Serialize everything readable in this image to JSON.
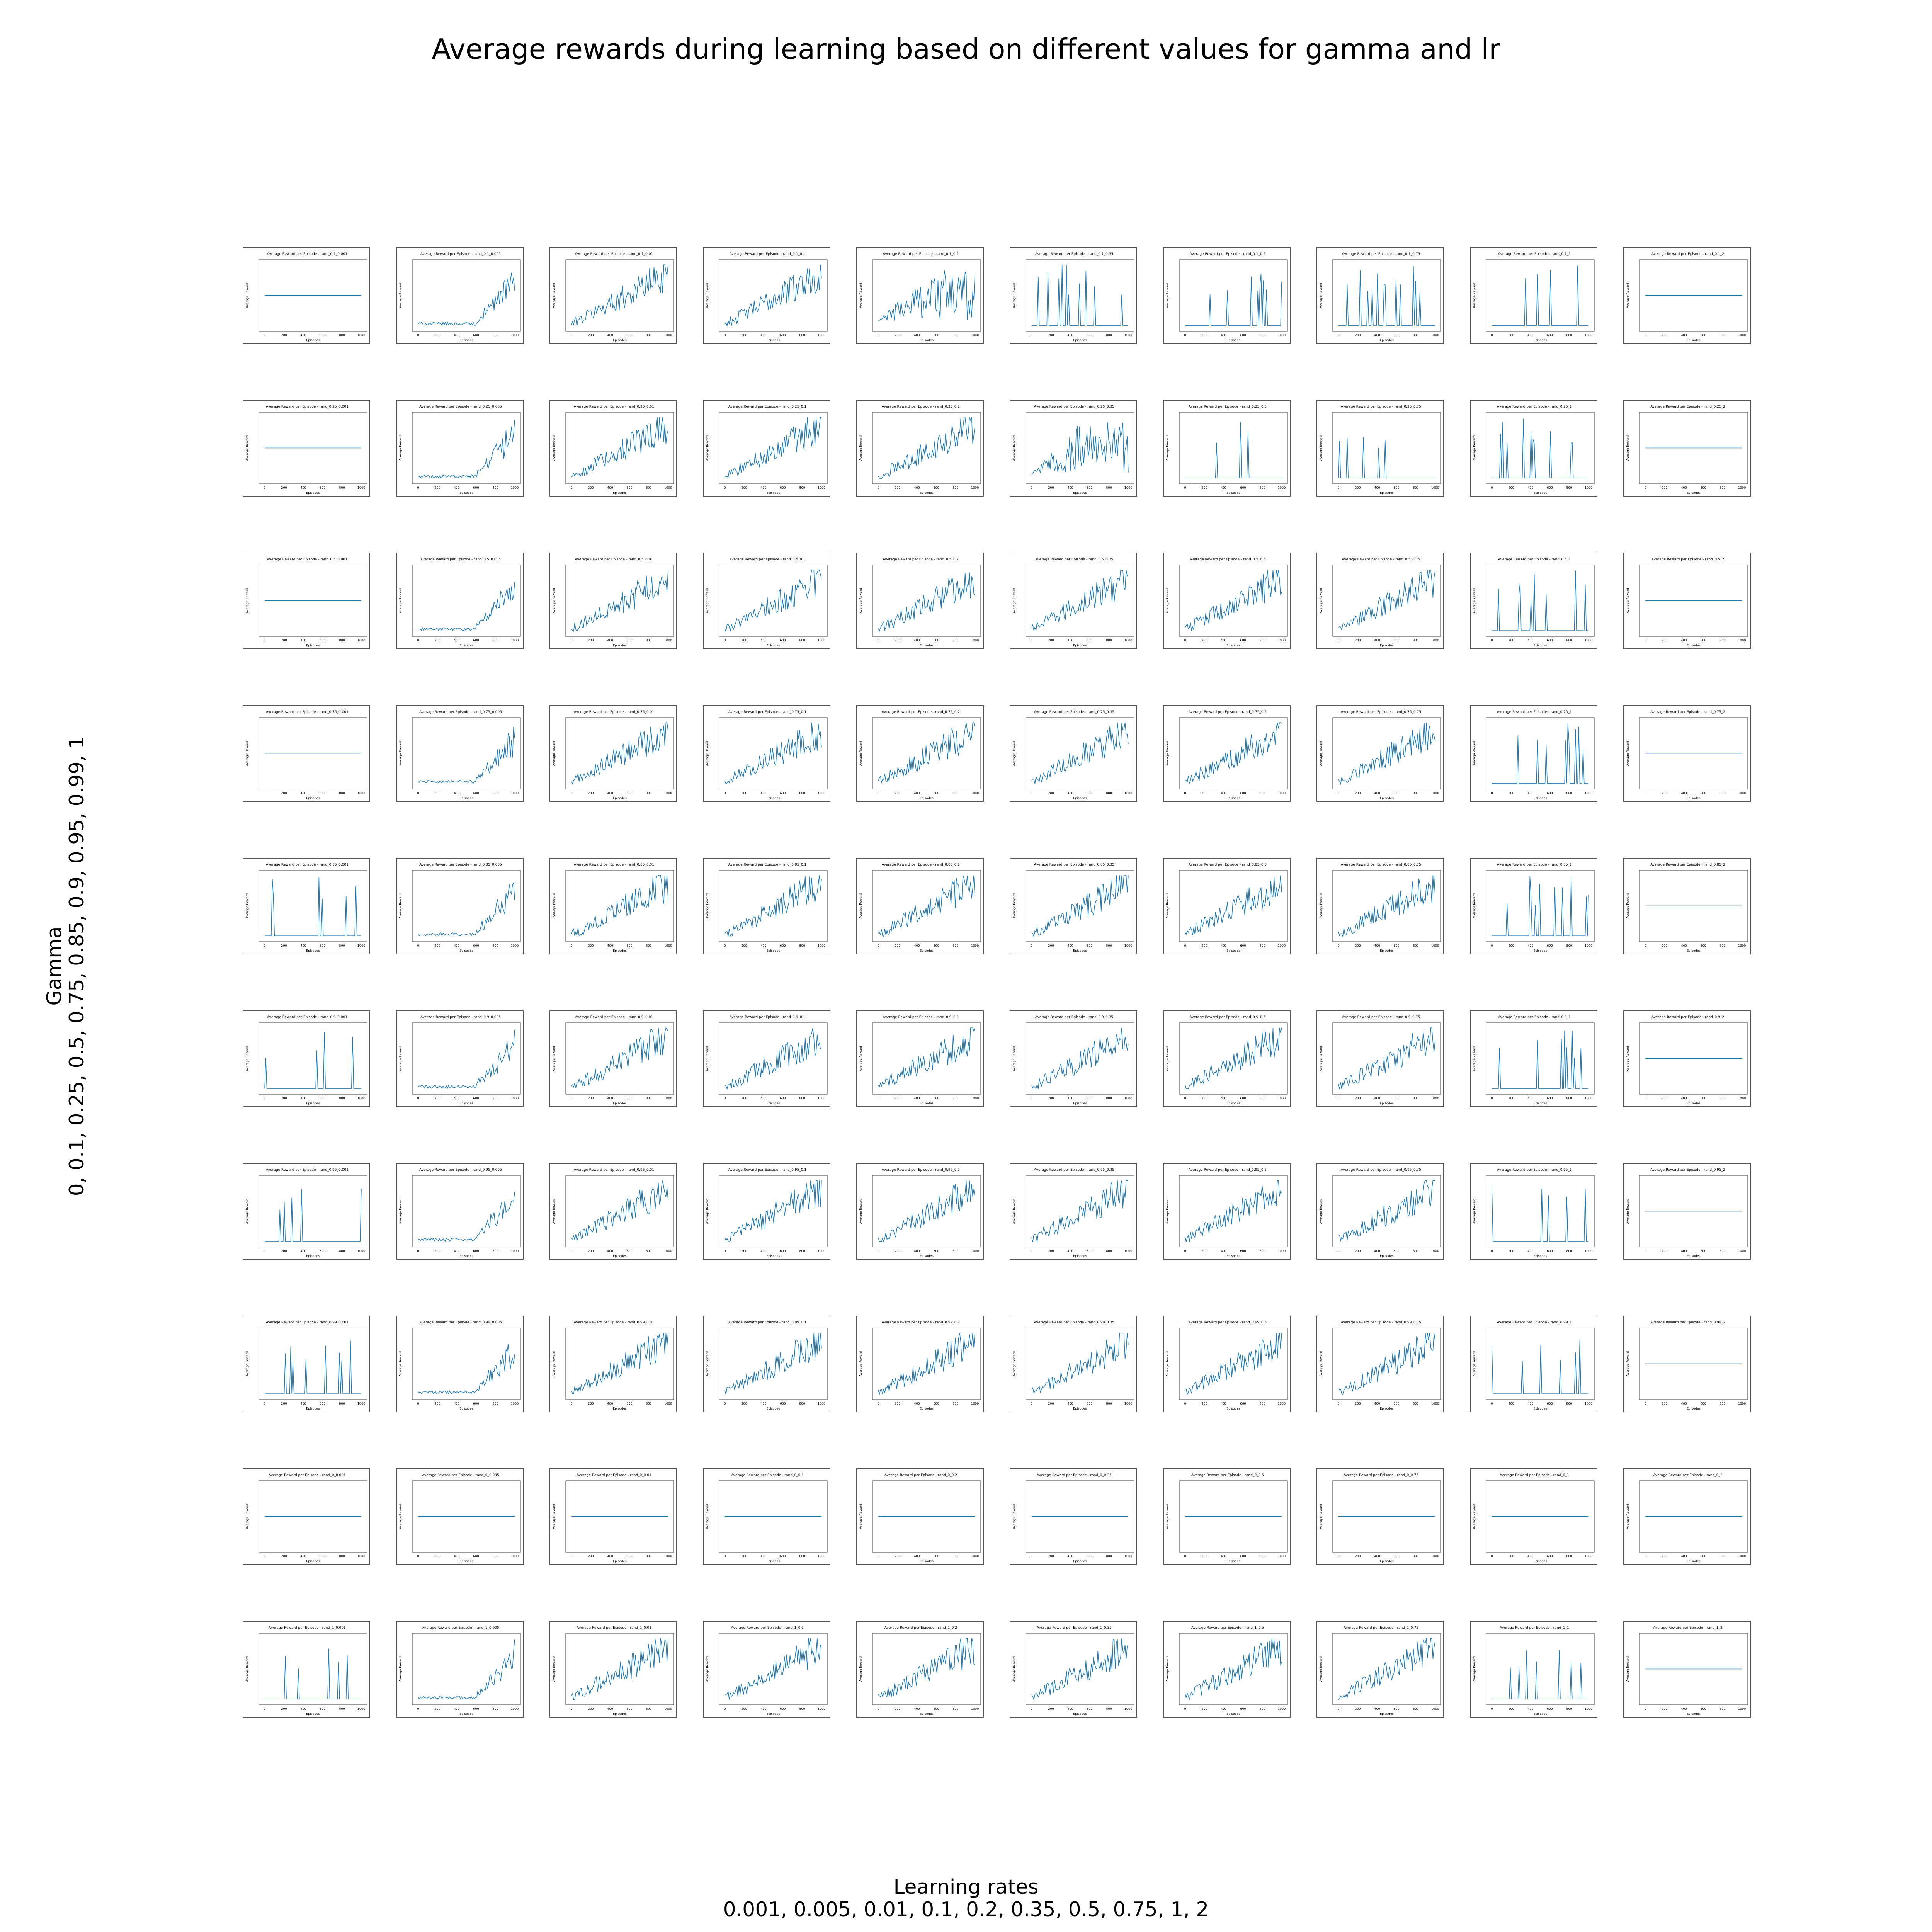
{
  "title": "Average rewards during learning based on different values for gamma and lr",
  "xaxis": {
    "label": "Learning rates",
    "values": "0.001, 0.005, 0.01, 0.1, 0.2, 0.35, 0.5, 0.75, 1, 2"
  },
  "yaxis": {
    "label": "Gamma",
    "values": "0, 0.1, 0.25, 0.5, 0.75, 0.85, 0.9, 0.95, 0.99, 1"
  },
  "chart_data": {
    "type": "line",
    "layout": "small-multiples grid",
    "rows_gamma": [
      "0.1",
      "0.25",
      "0.5",
      "0.75",
      "0.85",
      "0.9",
      "0.95",
      "0.99",
      "0",
      "1"
    ],
    "cols_lr": [
      "0.001",
      "0.005",
      "0.01",
      "0.1",
      "0.2",
      "0.35",
      "0.5",
      "0.75",
      "1",
      "2"
    ],
    "panel_title_template": "Average Reward per Episode - rand_{gamma}_{lr}",
    "panel_xlabel": "Episodes",
    "panel_ylabel": "Average Reward",
    "panel_xticks": [
      "0",
      "200",
      "400",
      "600",
      "800",
      "1000"
    ],
    "series_color": "#1f77b4",
    "note_patterns": "flat=constant line; rise=noisy upward trend; rise_late=flat then late rise; oscillate=noisy around mid; spikes=flat baseline with isolated spikes",
    "patterns": [
      [
        "flat",
        "rise_late",
        "rise",
        "rise",
        "oscillate",
        "spikes",
        "spikes",
        "spikes",
        "spikes",
        "flat"
      ],
      [
        "flat",
        "rise_late",
        "rise",
        "rise",
        "rise",
        "oscillate",
        "spikes",
        "spikes",
        "spikes",
        "flat"
      ],
      [
        "flat",
        "rise_late",
        "rise",
        "rise",
        "rise",
        "rise",
        "rise",
        "rise",
        "spikes",
        "flat"
      ],
      [
        "flat",
        "rise_late",
        "rise",
        "rise",
        "rise",
        "rise",
        "rise",
        "rise",
        "spikes",
        "flat"
      ],
      [
        "spikes",
        "rise_late",
        "rise",
        "rise",
        "rise",
        "rise",
        "rise",
        "rise",
        "spikes",
        "flat"
      ],
      [
        "spikes",
        "rise_late",
        "rise",
        "rise",
        "rise",
        "rise",
        "rise",
        "rise",
        "spikes",
        "flat"
      ],
      [
        "spikes",
        "rise_late",
        "rise",
        "rise",
        "rise",
        "rise",
        "rise",
        "rise",
        "spikes",
        "flat"
      ],
      [
        "spikes",
        "rise_late",
        "rise",
        "rise",
        "rise",
        "rise",
        "rise",
        "rise",
        "spikes",
        "flat"
      ],
      [
        "flat",
        "flat",
        "flat",
        "flat",
        "flat",
        "flat",
        "flat",
        "flat",
        "flat",
        "flat"
      ],
      [
        "spikes",
        "rise_late",
        "rise",
        "rise",
        "rise",
        "rise",
        "rise",
        "rise",
        "spikes",
        "flat"
      ]
    ]
  }
}
